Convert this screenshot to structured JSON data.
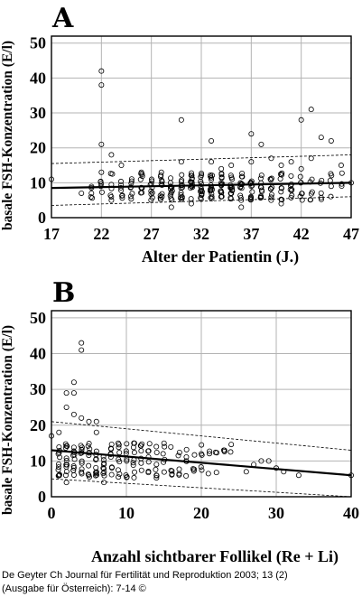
{
  "chart_data": [
    {
      "type": "scatter",
      "panel_label": "A",
      "xlabel": "Alter der Patientin (J.)",
      "ylabel": "basale FSH-Konzentration (E/l)",
      "xlim": [
        17,
        47
      ],
      "ylim": [
        0,
        52
      ],
      "xticks": [
        17,
        22,
        27,
        32,
        37,
        42,
        47
      ],
      "yticks": [
        0,
        10,
        20,
        30,
        40,
        50
      ],
      "grid": true,
      "outliers": [
        {
          "x": 17,
          "y": 11
        },
        {
          "x": 20,
          "y": 7
        },
        {
          "x": 21,
          "y": 7
        },
        {
          "x": 22,
          "y": 42
        },
        {
          "x": 22,
          "y": 38
        },
        {
          "x": 22,
          "y": 21
        },
        {
          "x": 22,
          "y": 13
        },
        {
          "x": 23,
          "y": 18
        },
        {
          "x": 23,
          "y": 5
        },
        {
          "x": 24,
          "y": 15
        },
        {
          "x": 26,
          "y": 13
        },
        {
          "x": 28,
          "y": 13
        },
        {
          "x": 29,
          "y": 3
        },
        {
          "x": 30,
          "y": 28
        },
        {
          "x": 30,
          "y": 16
        },
        {
          "x": 31,
          "y": 4
        },
        {
          "x": 33,
          "y": 22
        },
        {
          "x": 33,
          "y": 16
        },
        {
          "x": 34,
          "y": 14
        },
        {
          "x": 35,
          "y": 15
        },
        {
          "x": 36,
          "y": 3
        },
        {
          "x": 37,
          "y": 24
        },
        {
          "x": 37,
          "y": 16
        },
        {
          "x": 38,
          "y": 21
        },
        {
          "x": 39,
          "y": 17
        },
        {
          "x": 40,
          "y": 4
        },
        {
          "x": 40,
          "y": 15
        },
        {
          "x": 41,
          "y": 16
        },
        {
          "x": 42,
          "y": 28
        },
        {
          "x": 42,
          "y": 14
        },
        {
          "x": 43,
          "y": 31
        },
        {
          "x": 43,
          "y": 17
        },
        {
          "x": 44,
          "y": 23
        },
        {
          "x": 45,
          "y": 22
        },
        {
          "x": 45,
          "y": 9
        },
        {
          "x": 46,
          "y": 15
        },
        {
          "x": 47,
          "y": 10
        }
      ],
      "dense_cloud": {
        "x_range": [
          21,
          46
        ],
        "y_range": [
          5,
          13
        ],
        "count_per_age": 16
      },
      "fit_line": {
        "x": [
          17,
          47
        ],
        "y": [
          8.5,
          10
        ]
      },
      "upper_band": {
        "x": [
          17,
          47
        ],
        "y": [
          15.5,
          18
        ]
      },
      "lower_band": {
        "x": [
          17,
          47
        ],
        "y": [
          3.5,
          6
        ]
      }
    },
    {
      "type": "scatter",
      "panel_label": "B",
      "xlabel": "Anzahl sichtbarer Follikel (Re + Li)",
      "ylabel": "basale FSH-Konzentration (E/l)",
      "xlim": [
        0,
        40
      ],
      "ylim": [
        0,
        52
      ],
      "xticks": [
        0,
        10,
        20,
        30,
        40
      ],
      "yticks": [
        0,
        10,
        20,
        30,
        40,
        50
      ],
      "grid": true,
      "outliers": [
        {
          "x": 4,
          "y": 43
        },
        {
          "x": 4,
          "y": 41
        },
        {
          "x": 3,
          "y": 32
        },
        {
          "x": 2,
          "y": 29
        },
        {
          "x": 3,
          "y": 29
        },
        {
          "x": 2,
          "y": 25
        },
        {
          "x": 3,
          "y": 23
        },
        {
          "x": 4,
          "y": 22
        },
        {
          "x": 1,
          "y": 18
        },
        {
          "x": 5,
          "y": 21
        },
        {
          "x": 6,
          "y": 21
        },
        {
          "x": 6,
          "y": 18
        },
        {
          "x": 2,
          "y": 4
        },
        {
          "x": 7,
          "y": 4
        },
        {
          "x": 0,
          "y": 17
        },
        {
          "x": 11,
          "y": 15
        },
        {
          "x": 14,
          "y": 14
        },
        {
          "x": 20,
          "y": 12
        },
        {
          "x": 23,
          "y": 13
        },
        {
          "x": 26,
          "y": 7
        },
        {
          "x": 27,
          "y": 9
        },
        {
          "x": 28,
          "y": 10
        },
        {
          "x": 29,
          "y": 10
        },
        {
          "x": 30,
          "y": 8
        },
        {
          "x": 31,
          "y": 7
        },
        {
          "x": 33,
          "y": 6
        },
        {
          "x": 40,
          "y": 6
        }
      ],
      "dense_cloud": {
        "x_range": [
          1,
          24
        ],
        "y_range": [
          5,
          15
        ],
        "count_per_x": 10
      },
      "fit_line": {
        "x": [
          0,
          40
        ],
        "y": [
          13,
          6
        ]
      },
      "upper_band": {
        "x": [
          0,
          40
        ],
        "y": [
          21,
          13
        ]
      },
      "lower_band": {
        "x": [
          0,
          40
        ],
        "y": [
          5,
          0
        ]
      }
    }
  ],
  "caption": {
    "line1": "De Geyter Ch Journal für Fertilität und Reproduktion 2003; 13 (2)",
    "line2": "(Ausgabe für Österreich): 7-14 ©"
  }
}
